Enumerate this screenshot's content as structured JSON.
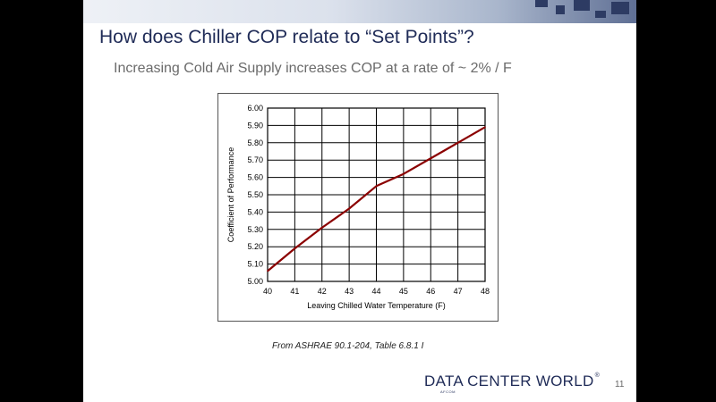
{
  "slide": {
    "title": "How does Chiller COP relate to “Set Points”?",
    "subtitle": "Increasing Cold Air Supply increases COP at a rate of  ~ 2% / F",
    "source": "From ASHRAE 90.1-204, Table 6.8.1 I",
    "logo_text": "DATA CENTER WORLD",
    "logo_sub": "AFCOM",
    "logo_mark": "®",
    "page_number": "11"
  },
  "chart_data": {
    "type": "line",
    "xlabel": "Leaving Chilled Water Temperature (F)",
    "ylabel": "Coefficient of Performance",
    "xlim": [
      40,
      48
    ],
    "ylim": [
      5.0,
      6.0
    ],
    "x_ticks": [
      "40",
      "41",
      "42",
      "43",
      "44",
      "45",
      "46",
      "47",
      "48"
    ],
    "y_ticks": [
      "5.00",
      "5.10",
      "5.20",
      "5.30",
      "5.40",
      "5.50",
      "5.60",
      "5.70",
      "5.80",
      "5.90",
      "6.00"
    ],
    "grid": true,
    "series": [
      {
        "color": "#8b0000",
        "x": [
          40,
          41,
          42,
          43,
          44,
          45,
          46,
          47,
          48
        ],
        "y": [
          5.06,
          5.19,
          5.31,
          5.42,
          5.55,
          5.62,
          5.71,
          5.8,
          5.89
        ]
      }
    ]
  }
}
